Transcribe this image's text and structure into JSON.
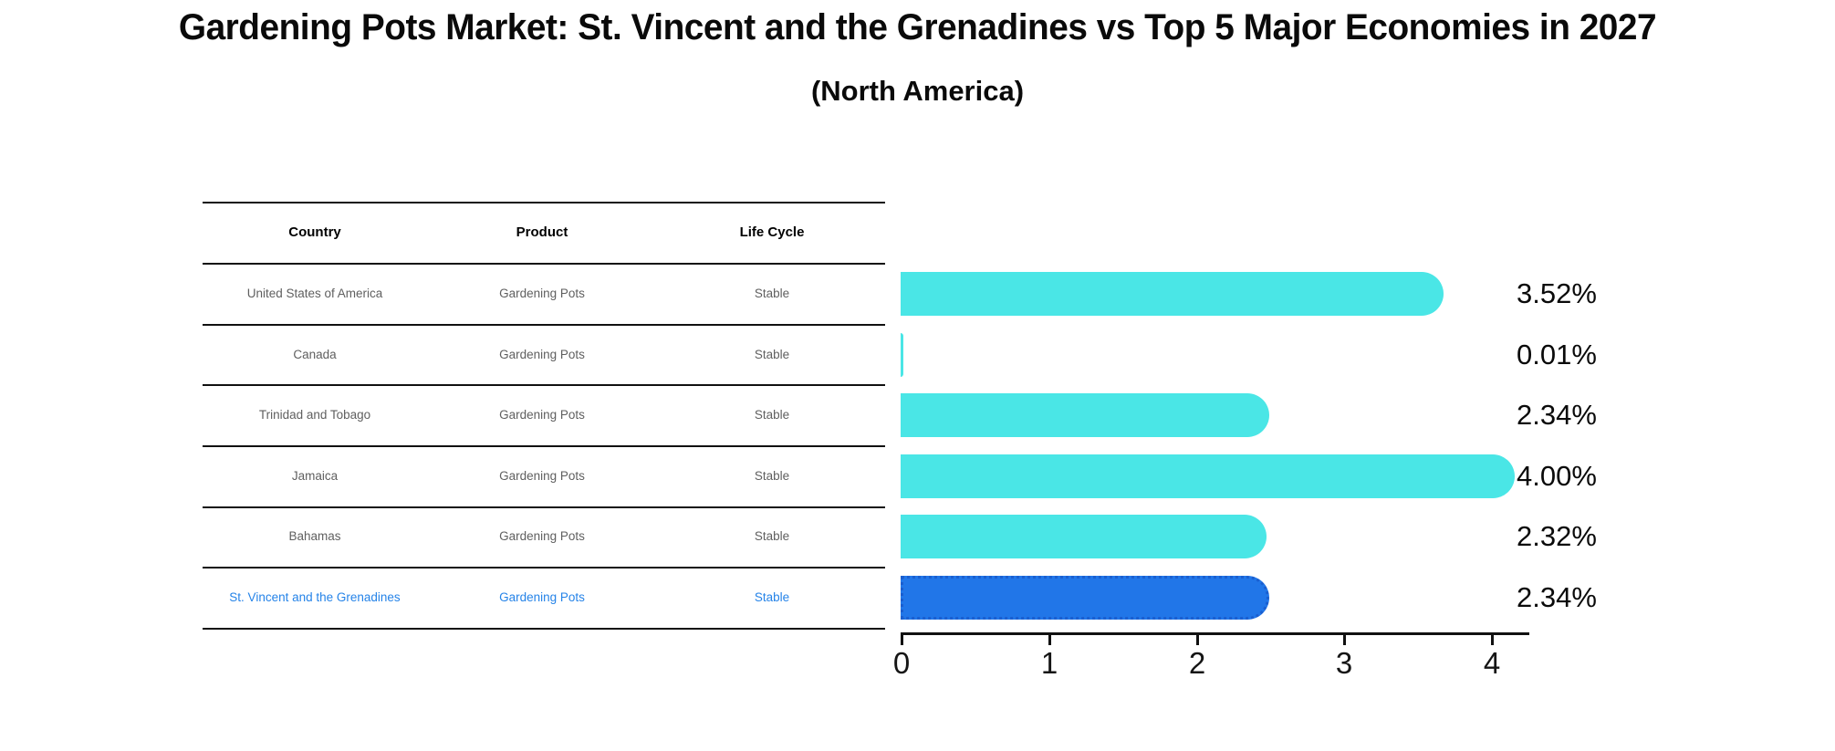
{
  "title": "Gardening Pots Market: St. Vincent and the Grenadines vs Top 5 Major Economies in 2027",
  "subtitle": "(North America)",
  "table": {
    "headers": [
      "Country",
      "Product",
      "Life Cycle"
    ],
    "rows": [
      {
        "country": "United States of America",
        "product": "Gardening Pots",
        "life_cycle": "Stable",
        "highlighted": false
      },
      {
        "country": "Canada",
        "product": "Gardening Pots",
        "life_cycle": "Stable",
        "highlighted": false
      },
      {
        "country": "Trinidad and Tobago",
        "product": "Gardening Pots",
        "life_cycle": "Stable",
        "highlighted": false
      },
      {
        "country": "Jamaica",
        "product": "Gardening Pots",
        "life_cycle": "Stable",
        "highlighted": false
      },
      {
        "country": "Bahamas",
        "product": "Gardening Pots",
        "life_cycle": "Stable",
        "highlighted": false
      },
      {
        "country": "St. Vincent and the Grenadines",
        "product": "Gardening Pots",
        "life_cycle": "Stable",
        "highlighted": true
      }
    ]
  },
  "chart_data": {
    "type": "bar",
    "orientation": "horizontal",
    "title": "Gardening Pots Market: St. Vincent and the Grenadines vs Top 5 Major Economies in 2027 (North America)",
    "categories": [
      "United States of America",
      "Canada",
      "Trinidad and Tobago",
      "Jamaica",
      "Bahamas",
      "St. Vincent and the Grenadines"
    ],
    "values": [
      3.52,
      0.01,
      2.34,
      4.0,
      2.32,
      2.34
    ],
    "value_labels": [
      "3.52%",
      "0.01%",
      "2.34%",
      "4.00%",
      "2.32%",
      "2.34%"
    ],
    "unit": "%",
    "x_ticks": [
      "0",
      "1",
      "2",
      "3",
      "4"
    ],
    "xlim": [
      0,
      4.25
    ],
    "grid": false,
    "legend": false,
    "bar_color": "#4ae6e6",
    "highlight_color": "#2176e8",
    "highlight_border_color": "#1a5fd0",
    "highlight_index": 5
  }
}
